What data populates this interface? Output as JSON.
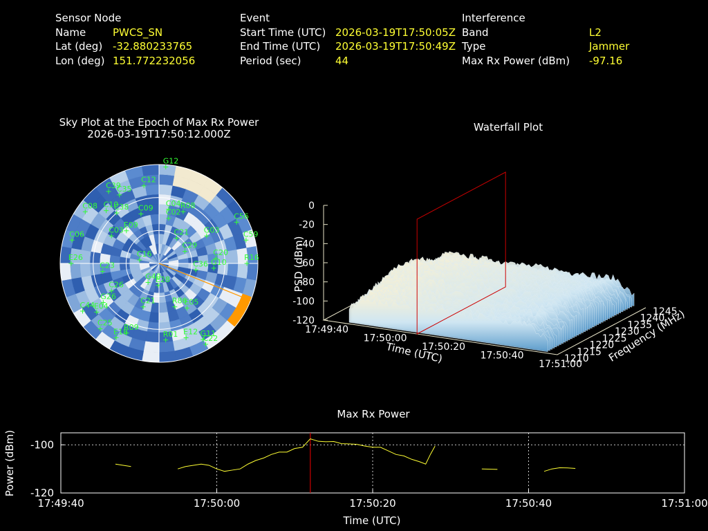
{
  "header": {
    "sensor": {
      "title": "Sensor Node",
      "rows": [
        {
          "k": "Name",
          "v": "PWCS_SN"
        },
        {
          "k": "Lat (deg)",
          "v": "-32.880233765"
        },
        {
          "k": "Lon (deg)",
          "v": "151.772232056"
        }
      ]
    },
    "event": {
      "title": "Event",
      "rows": [
        {
          "k": "Start Time (UTC)",
          "v": "2026-03-19T17:50:05Z"
        },
        {
          "k": "End Time (UTC)",
          "v": "2026-03-19T17:50:49Z"
        },
        {
          "k": "Period (sec)",
          "v": "44"
        }
      ]
    },
    "interference": {
      "title": "Interference",
      "rows": [
        {
          "k": "Band",
          "v": "L2"
        },
        {
          "k": "Type",
          "v": "Jammer"
        },
        {
          "k": "Max Rx Power (dBm)",
          "v": "-97.16"
        }
      ]
    }
  },
  "colors": {
    "accent": "#ffff33",
    "sat": "#33ff33",
    "jammer": "#ff9900",
    "marker": "#cc0000"
  },
  "chart_data": [
    {
      "type": "scatter",
      "title": "Sky Plot at the Epoch of Max Rx Power",
      "subtitle": "2026-03-19T17:50:12.000Z",
      "jammer_azimuth_deg": 112,
      "satellites": [
        {
          "id": "G12",
          "az": 4,
          "el": 2
        },
        {
          "id": "C12",
          "az": 349,
          "el": 18
        },
        {
          "id": "C39",
          "az": 325,
          "el": 10
        },
        {
          "id": "C35",
          "az": 330,
          "el": 18
        },
        {
          "id": "C38",
          "az": 320,
          "el": 30
        },
        {
          "id": "C08",
          "az": 305,
          "el": 8
        },
        {
          "id": "C10",
          "az": 315,
          "el": 22
        },
        {
          "id": "C09",
          "az": 340,
          "el": 42
        },
        {
          "id": "C04",
          "az": 10,
          "el": 40
        },
        {
          "id": "R08",
          "az": 25,
          "el": 38
        },
        {
          "id": "C02",
          "az": 12,
          "el": 48
        },
        {
          "id": "C03",
          "az": 300,
          "el": 40
        },
        {
          "id": "E09",
          "az": 315,
          "el": 48
        },
        {
          "id": "C06",
          "az": 285,
          "el": 8
        },
        {
          "id": "C56",
          "az": 62,
          "el": 10
        },
        {
          "id": "C59",
          "az": 75,
          "el": 8
        },
        {
          "id": "G03",
          "az": 60,
          "el": 40
        },
        {
          "id": "C21",
          "az": 35,
          "el": 62
        },
        {
          "id": "C29",
          "az": 65,
          "el": 64
        },
        {
          "id": "C20",
          "az": 85,
          "el": 38
        },
        {
          "id": "G10",
          "az": 95,
          "el": 40
        },
        {
          "id": "R16",
          "az": 90,
          "el": 10
        },
        {
          "id": "C36",
          "az": 100,
          "el": 56
        },
        {
          "id": "E26",
          "az": 270,
          "el": 10
        },
        {
          "id": "C23",
          "az": 262,
          "el": 38
        },
        {
          "id": "C26",
          "az": 240,
          "el": 40
        },
        {
          "id": "G26",
          "az": 235,
          "el": 28
        },
        {
          "id": "E04",
          "az": 232,
          "el": 18
        },
        {
          "id": "C44",
          "az": 238,
          "el": 8
        },
        {
          "id": "G40",
          "az": 210,
          "el": 70
        },
        {
          "id": "C21b",
          "az": 200,
          "el": 48
        },
        {
          "id": "R86",
          "az": 160,
          "el": 48
        },
        {
          "id": "E05",
          "az": 148,
          "el": 42
        },
        {
          "id": "E12",
          "az": 160,
          "el": 18
        },
        {
          "id": "R01",
          "az": 175,
          "el": 20
        },
        {
          "id": "G11",
          "az": 150,
          "el": 10
        },
        {
          "id": "C22",
          "az": 150,
          "el": 5
        },
        {
          "id": "C25",
          "az": 222,
          "el": 10
        },
        {
          "id": "E18",
          "az": 210,
          "el": 12
        },
        {
          "id": "R09",
          "az": 205,
          "el": 20
        },
        {
          "id": "C16",
          "az": 280,
          "el": 72
        },
        {
          "id": "E28",
          "az": 182,
          "el": 70
        }
      ]
    },
    {
      "type": "area",
      "title": "Waterfall Plot",
      "xlabel": "Time (UTC)",
      "ylabel": "Frequency (MHz)",
      "zlabel": "PSD (dBm)",
      "x_ticks": [
        "17:49:40",
        "17:50:00",
        "17:50:20",
        "17:50:40",
        "17:51:00"
      ],
      "y_ticks": [
        "1210",
        "1215",
        "1220",
        "1225",
        "1230",
        "1235",
        "1240",
        "1245"
      ],
      "z_ticks": [
        "0",
        "-20",
        "-40",
        "-60",
        "-80",
        "-100",
        "-120"
      ],
      "zlim": [
        -120,
        0
      ],
      "marker_time": "17:50:12"
    },
    {
      "type": "line",
      "title": "Max Rx Power",
      "xlabel": "Time (UTC)",
      "ylabel": "Power (dBm)",
      "x_ticks": [
        "17:49:40",
        "17:50:00",
        "17:50:20",
        "17:50:40",
        "17:51:00"
      ],
      "y_ticks": [
        "-100",
        "-120"
      ],
      "xlim_sec": [
        0,
        80
      ],
      "ylim": [
        -120,
        -95
      ],
      "marker_sec": 32,
      "segments": [
        [
          [
            7,
            -108
          ],
          [
            9,
            -109
          ]
        ],
        [
          [
            15,
            -110
          ],
          [
            16,
            -109
          ],
          [
            18,
            -108
          ],
          [
            19,
            -108.5
          ],
          [
            20,
            -110
          ],
          [
            21,
            -111
          ],
          [
            22,
            -110.5
          ],
          [
            23,
            -110
          ],
          [
            24,
            -108
          ],
          [
            25,
            -106.5
          ],
          [
            26,
            -105.5
          ],
          [
            27,
            -104
          ],
          [
            28,
            -103
          ],
          [
            29,
            -103
          ],
          [
            30,
            -101.5
          ],
          [
            31,
            -101
          ],
          [
            32,
            -97.5
          ],
          [
            33,
            -98.5
          ],
          [
            34,
            -98.7
          ],
          [
            35,
            -98.6
          ],
          [
            36,
            -99.5
          ],
          [
            37,
            -99.6
          ],
          [
            38,
            -99.8
          ],
          [
            39,
            -100.5
          ],
          [
            40,
            -101
          ],
          [
            41,
            -101
          ],
          [
            42,
            -102.5
          ],
          [
            43,
            -104
          ],
          [
            44,
            -104.6
          ],
          [
            45,
            -106
          ],
          [
            46,
            -107
          ],
          [
            46.8,
            -108
          ],
          [
            47.4,
            -104
          ],
          [
            48,
            -100.5
          ]
        ],
        [
          [
            54,
            -110
          ],
          [
            56,
            -110.2
          ]
        ],
        [
          [
            62,
            -111
          ],
          [
            63,
            -110
          ],
          [
            64,
            -109.5
          ],
          [
            65,
            -109.6
          ],
          [
            66,
            -109.8
          ]
        ]
      ]
    }
  ]
}
